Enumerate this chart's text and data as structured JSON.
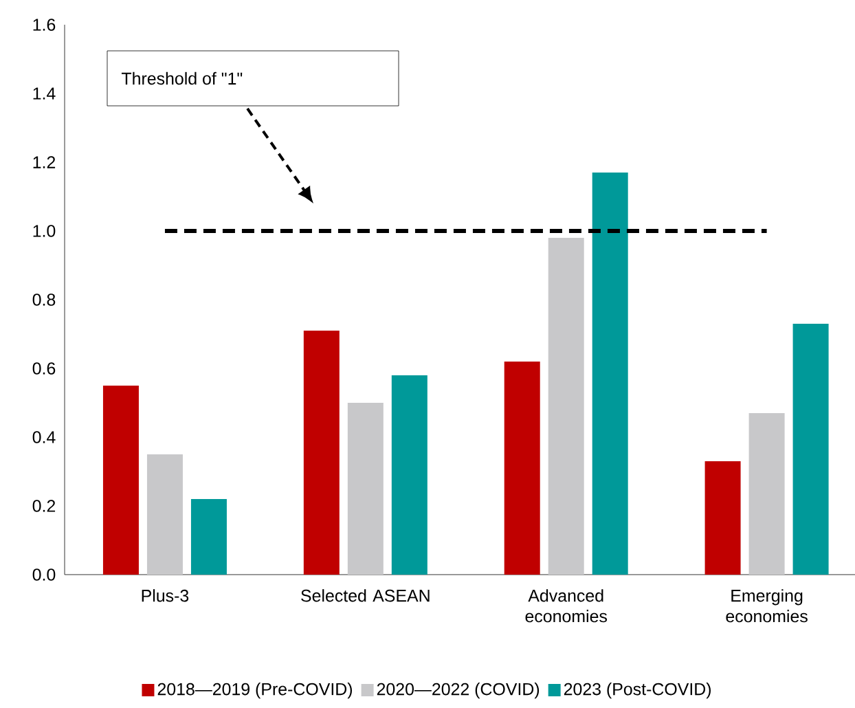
{
  "chart_data": {
    "type": "bar",
    "categories": [
      "Plus-3",
      "Selected ASEAN",
      "Advanced economies",
      "Emerging economies"
    ],
    "series": [
      {
        "name": "2018—2019 (Pre-COVID)",
        "color": "#c00000",
        "values": [
          0.55,
          0.71,
          0.62,
          0.33
        ]
      },
      {
        "name": "2020—2022 (COVID)",
        "color": "#c8c8ca",
        "values": [
          0.35,
          0.5,
          0.98,
          0.47
        ]
      },
      {
        "name": "2023 (Post-COVID)",
        "color": "#009999",
        "values": [
          0.22,
          0.58,
          1.17,
          0.73
        ]
      }
    ],
    "ylim": [
      0,
      1.6
    ],
    "yticks": [
      {
        "value": 0,
        "label": "0.0"
      },
      {
        "value": 0.2,
        "label": "0.2"
      },
      {
        "value": 0.4,
        "label": "0.4"
      },
      {
        "value": 0.6,
        "label": "0.6"
      },
      {
        "value": 0.8,
        "label": "0.8"
      },
      {
        "value": 1,
        "label": "1.0"
      },
      {
        "value": 1.2,
        "label": "1.2"
      },
      {
        "value": 1.4,
        "label": "1.4"
      },
      {
        "value": 1.6,
        "label": "1.6"
      }
    ],
    "ref_lines": [
      {
        "axis": "y",
        "value": 1,
        "color": "#000000",
        "line_style": "dashed"
      }
    ],
    "annotations": [
      "Threshold of \"1\""
    ],
    "grid": false,
    "legend": "bottom"
  }
}
